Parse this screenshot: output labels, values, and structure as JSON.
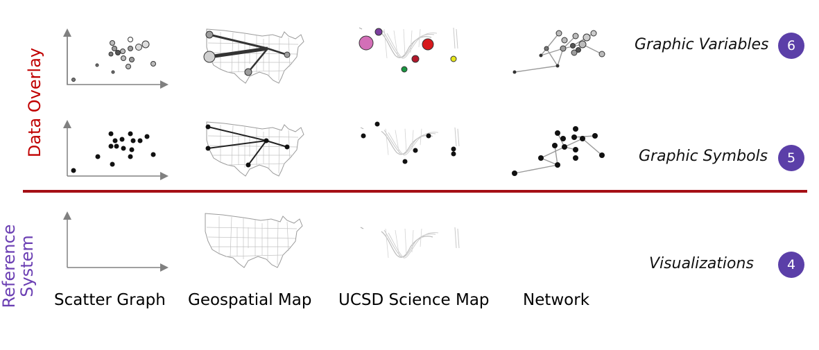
{
  "side_labels": {
    "data_overlay": "Data Overlay",
    "reference_system_line1": "Reference",
    "reference_system_line2": "System"
  },
  "rows": [
    {
      "label": "Graphic Variables",
      "badge": "6"
    },
    {
      "label": "Graphic Symbols",
      "badge": "5"
    },
    {
      "label": "Visualizations",
      "badge": "4"
    }
  ],
  "columns": [
    {
      "label": "Scatter Graph"
    },
    {
      "label": "Geospatial Map"
    },
    {
      "label": "UCSD Science Map"
    },
    {
      "label": "Network"
    }
  ],
  "colors": {
    "data_overlay_text": "#c00000",
    "reference_text": "#6b3fb3",
    "divider": "#a50f15",
    "badge_bg": "#5b3fa8",
    "axis": "#808080",
    "map_outline": "#9a9a9a",
    "symbol_fill": "#111111",
    "variable_gray": "#9d9d9d",
    "science_pink": "#d36fb7",
    "science_purple": "#7b3f9e",
    "science_red": "#d7191c",
    "science_darkred": "#b2182b",
    "science_green": "#1a9641",
    "science_yellow": "#e6e61a"
  }
}
